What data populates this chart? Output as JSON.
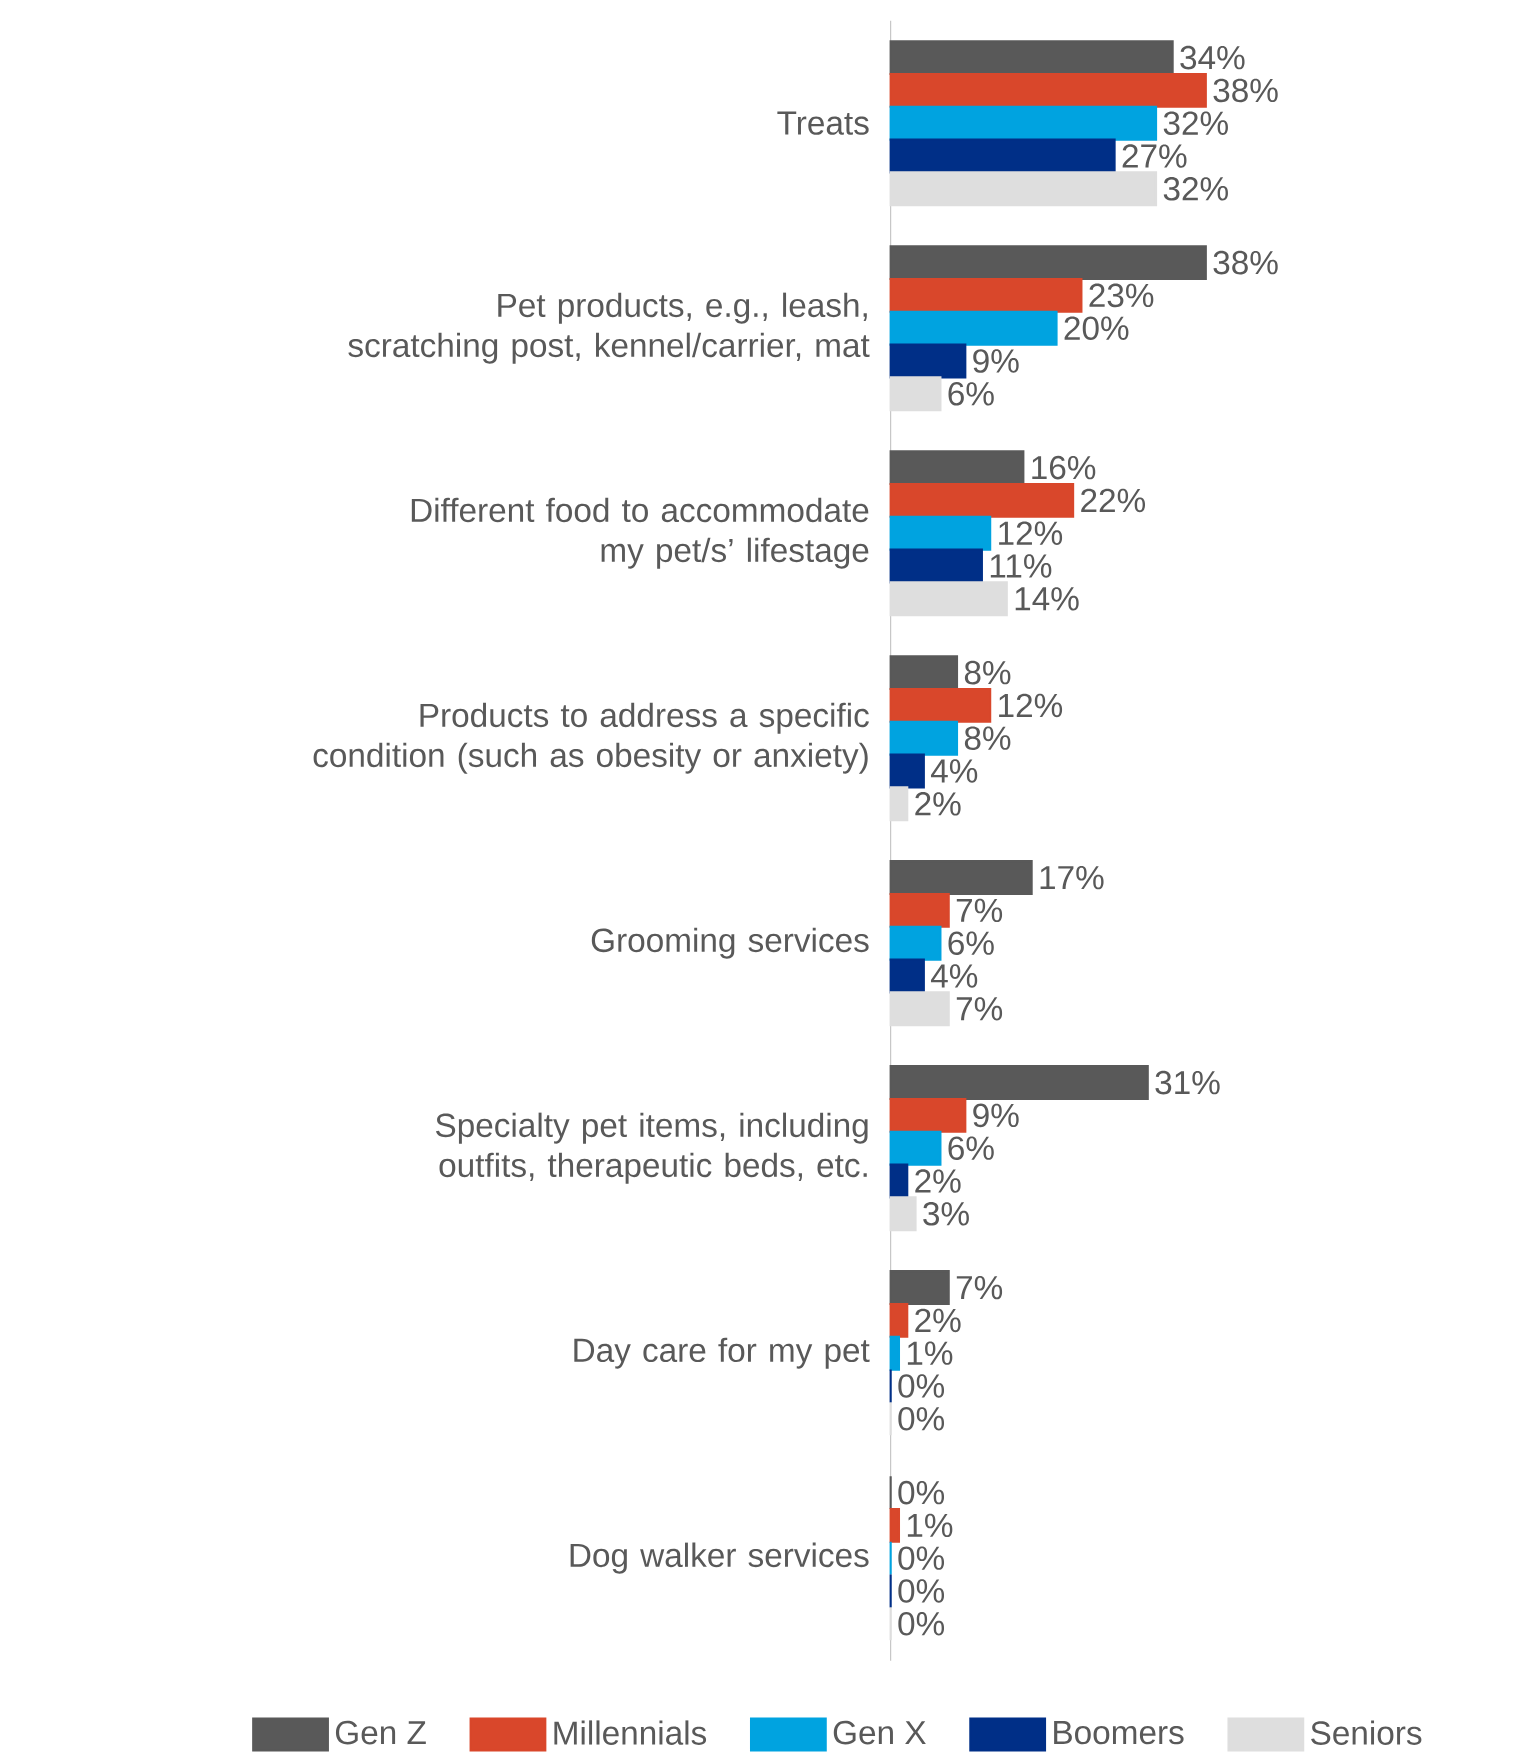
{
  "chart_data": {
    "type": "bar",
    "orientation": "horizontal",
    "legend": "bottom",
    "categories": [
      "Treats",
      "Pet products, e.g., leash, scratching post, kennel/carrier, mat",
      "Different food to accommodate my pet/s’ lifestage",
      "Products to address a specific condition (such as obesity or anxiety)",
      "Grooming services",
      "Specialty pet items, including outfits, therapeutic beds, etc.",
      "Day care for my pet",
      "Dog walker services"
    ],
    "series": [
      {
        "name": "Gen Z",
        "color": "#595959",
        "values": [
          34,
          38,
          16,
          8,
          17,
          31,
          7,
          0
        ],
        "value_labels": [
          "34%",
          "38%",
          "16%",
          "8%",
          "17%",
          "31%",
          "7%",
          "0%"
        ]
      },
      {
        "name": "Millennials",
        "color": "#d9472b",
        "values": [
          38,
          23,
          22,
          12,
          7,
          9,
          2,
          1
        ],
        "value_labels": [
          "38%",
          "23%",
          "22%",
          "12%",
          "7%",
          "9%",
          "2%",
          "1%"
        ]
      },
      {
        "name": "Gen X",
        "color": "#00a3e0",
        "values": [
          32,
          20,
          12,
          8,
          6,
          6,
          1,
          0
        ],
        "value_labels": [
          "32%",
          "20%",
          "12%",
          "8%",
          "6%",
          "6%",
          "1%",
          "0%"
        ]
      },
      {
        "name": "Boomers",
        "color": "#002f87",
        "values": [
          27,
          9,
          11,
          4,
          4,
          2,
          0,
          0
        ],
        "value_labels": [
          "27%",
          "9%",
          "11%",
          "4%",
          "4%",
          "2%",
          "0%",
          "0%"
        ]
      },
      {
        "name": "Seniors",
        "color": "#dedede",
        "values": [
          32,
          6,
          14,
          2,
          7,
          3,
          0,
          0
        ],
        "value_labels": [
          "32%",
          "6%",
          "14%",
          "2%",
          "7%",
          "3%",
          "0%",
          "0%"
        ]
      }
    ]
  }
}
